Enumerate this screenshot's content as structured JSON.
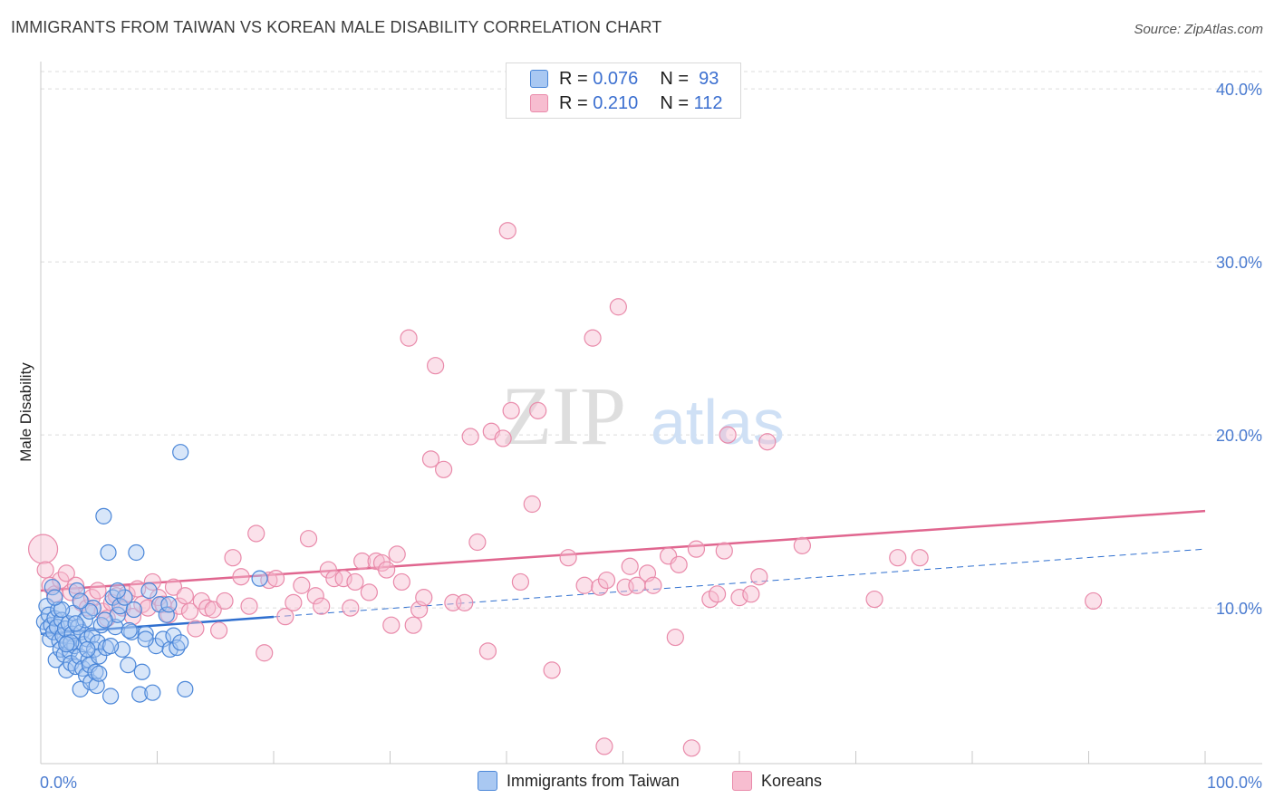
{
  "header": {
    "title": "IMMIGRANTS FROM TAIWAN VS KOREAN MALE DISABILITY CORRELATION CHART",
    "source": "Source: ZipAtlas.com"
  },
  "watermark": {
    "zip": "ZIP",
    "atlas": "atlas"
  },
  "legend": {
    "r_label": "R =",
    "n_label": "N =",
    "series": [
      {
        "name": "Immigrants from Taiwan",
        "r": "0.076",
        "n": "93"
      },
      {
        "name": "Koreans",
        "r": "0.210",
        "n": "112"
      }
    ]
  },
  "colors": {
    "taiwan_fill": "#a9c8f2",
    "taiwan_stroke": "#4a86d8",
    "taiwan_line": "#2f6fcf",
    "korean_fill": "#f7bdd0",
    "korean_stroke": "#e98aaa",
    "korean_line": "#e0668f",
    "tick_text": "#4a7bd0"
  },
  "chart_data": {
    "type": "scatter",
    "title": "IMMIGRANTS FROM TAIWAN VS KOREAN MALE DISABILITY CORRELATION CHART",
    "xlabel": "",
    "ylabel": "Male Disability",
    "xlim": [
      0,
      100
    ],
    "ylim": [
      1,
      41
    ],
    "x_tick_labels": [
      "0.0%",
      "100.0%"
    ],
    "y_ticks": [
      10,
      20,
      30,
      40
    ],
    "y_tick_labels": [
      "10.0%",
      "20.0%",
      "30.0%",
      "40.0%"
    ],
    "grid": "horizontal dashed",
    "legend_position": "bottom-center",
    "series": [
      {
        "name": "Immigrants from Taiwan",
        "r": 0.076,
        "n": 93,
        "trend": {
          "x0": 0,
          "y0": 8.5,
          "x1": 100,
          "y1": 13.4,
          "solid_until": 20
        },
        "points": [
          [
            0.3,
            9.2
          ],
          [
            0.5,
            10.1
          ],
          [
            0.6,
            8.8
          ],
          [
            0.7,
            9.6
          ],
          [
            0.8,
            8.2
          ],
          [
            0.9,
            9.0
          ],
          [
            1.0,
            11.2
          ],
          [
            1.1,
            8.6
          ],
          [
            1.2,
            9.4
          ],
          [
            1.3,
            7.0
          ],
          [
            1.4,
            8.9
          ],
          [
            1.5,
            9.9
          ],
          [
            1.6,
            8.1
          ],
          [
            1.7,
            7.6
          ],
          [
            1.8,
            9.3
          ],
          [
            1.9,
            8.4
          ],
          [
            2.0,
            7.3
          ],
          [
            2.1,
            8.8
          ],
          [
            2.2,
            6.4
          ],
          [
            2.3,
            8.0
          ],
          [
            2.4,
            9.1
          ],
          [
            2.5,
            7.5
          ],
          [
            2.6,
            6.8
          ],
          [
            2.7,
            8.5
          ],
          [
            2.8,
            9.7
          ],
          [
            2.9,
            7.8
          ],
          [
            3.0,
            6.6
          ],
          [
            3.1,
            11.0
          ],
          [
            3.2,
            8.9
          ],
          [
            3.3,
            7.2
          ],
          [
            3.4,
            5.3
          ],
          [
            3.5,
            8.6
          ],
          [
            3.6,
            6.5
          ],
          [
            3.7,
            7.9
          ],
          [
            3.8,
            9.3
          ],
          [
            3.9,
            6.1
          ],
          [
            4.0,
            8.2
          ],
          [
            4.1,
            7.0
          ],
          [
            4.2,
            6.7
          ],
          [
            4.3,
            5.7
          ],
          [
            4.4,
            8.4
          ],
          [
            4.5,
            10.0
          ],
          [
            4.6,
            7.6
          ],
          [
            4.7,
            6.3
          ],
          [
            4.8,
            5.5
          ],
          [
            4.9,
            8.0
          ],
          [
            5.0,
            7.2
          ],
          [
            5.2,
            9.0
          ],
          [
            5.4,
            15.3
          ],
          [
            5.6,
            7.7
          ],
          [
            5.8,
            13.2
          ],
          [
            6.0,
            4.9
          ],
          [
            6.2,
            10.6
          ],
          [
            6.4,
            8.9
          ],
          [
            6.6,
            9.6
          ],
          [
            6.8,
            10.1
          ],
          [
            7.0,
            7.6
          ],
          [
            7.2,
            10.6
          ],
          [
            7.5,
            6.7
          ],
          [
            7.8,
            8.6
          ],
          [
            8.0,
            9.9
          ],
          [
            8.2,
            13.2
          ],
          [
            8.5,
            5.0
          ],
          [
            8.7,
            6.3
          ],
          [
            9.0,
            8.5
          ],
          [
            9.3,
            11.0
          ],
          [
            9.6,
            5.1
          ],
          [
            9.9,
            7.8
          ],
          [
            10.2,
            10.2
          ],
          [
            10.5,
            8.2
          ],
          [
            10.8,
            9.6
          ],
          [
            11.1,
            7.6
          ],
          [
            11.4,
            8.4
          ],
          [
            11.7,
            7.7
          ],
          [
            12.0,
            8.0
          ],
          [
            11.0,
            10.2
          ],
          [
            9.0,
            8.2
          ],
          [
            7.6,
            8.7
          ],
          [
            6.6,
            11.0
          ],
          [
            5.5,
            9.3
          ],
          [
            4.2,
            9.8
          ],
          [
            3.4,
            10.4
          ],
          [
            2.6,
            8.0
          ],
          [
            1.8,
            9.9
          ],
          [
            1.2,
            10.6
          ],
          [
            2.2,
            7.9
          ],
          [
            3.0,
            9.1
          ],
          [
            4.0,
            7.6
          ],
          [
            5.0,
            6.2
          ],
          [
            6.0,
            7.8
          ],
          [
            18.8,
            11.7
          ],
          [
            12.0,
            19.0
          ],
          [
            12.4,
            5.3
          ]
        ]
      },
      {
        "name": "Koreans",
        "r": 0.21,
        "n": 112,
        "trend": {
          "x0": 0,
          "y0": 11.0,
          "x1": 100,
          "y1": 15.6
        },
        "points": [
          [
            0.2,
            13.4
          ],
          [
            0.4,
            12.2
          ],
          [
            0.8,
            11.3
          ],
          [
            1.2,
            10.8
          ],
          [
            1.7,
            11.6
          ],
          [
            2.2,
            12.0
          ],
          [
            2.6,
            10.9
          ],
          [
            3.0,
            11.3
          ],
          [
            3.5,
            10.3
          ],
          [
            4.0,
            10.0
          ],
          [
            4.4,
            10.6
          ],
          [
            4.9,
            11.0
          ],
          [
            5.3,
            9.8
          ],
          [
            5.7,
            9.4
          ],
          [
            6.1,
            10.3
          ],
          [
            6.5,
            10.7
          ],
          [
            7.0,
            10.0
          ],
          [
            7.4,
            10.8
          ],
          [
            7.9,
            9.5
          ],
          [
            8.3,
            11.1
          ],
          [
            8.7,
            10.2
          ],
          [
            9.2,
            10.0
          ],
          [
            9.6,
            11.5
          ],
          [
            10.1,
            10.6
          ],
          [
            10.5,
            10.2
          ],
          [
            11.0,
            9.6
          ],
          [
            11.4,
            11.2
          ],
          [
            11.9,
            10.1
          ],
          [
            12.4,
            10.7
          ],
          [
            12.8,
            9.8
          ],
          [
            13.3,
            8.8
          ],
          [
            13.8,
            10.4
          ],
          [
            14.3,
            10.0
          ],
          [
            14.8,
            9.9
          ],
          [
            15.3,
            8.7
          ],
          [
            15.8,
            10.4
          ],
          [
            16.5,
            12.9
          ],
          [
            17.2,
            11.8
          ],
          [
            17.9,
            10.1
          ],
          [
            18.5,
            14.3
          ],
          [
            19.2,
            7.4
          ],
          [
            19.6,
            11.6
          ],
          [
            20.2,
            11.7
          ],
          [
            21.0,
            9.5
          ],
          [
            21.7,
            10.3
          ],
          [
            22.4,
            11.3
          ],
          [
            23.0,
            14.0
          ],
          [
            23.6,
            10.7
          ],
          [
            24.1,
            10.1
          ],
          [
            24.7,
            12.2
          ],
          [
            25.2,
            11.7
          ],
          [
            26.0,
            11.7
          ],
          [
            26.6,
            10.0
          ],
          [
            27.0,
            11.5
          ],
          [
            27.6,
            12.7
          ],
          [
            28.2,
            10.9
          ],
          [
            28.8,
            12.7
          ],
          [
            29.3,
            12.6
          ],
          [
            29.7,
            12.2
          ],
          [
            30.1,
            9.0
          ],
          [
            30.6,
            13.1
          ],
          [
            31.0,
            11.5
          ],
          [
            31.6,
            25.6
          ],
          [
            32.0,
            9.0
          ],
          [
            32.5,
            9.9
          ],
          [
            32.9,
            10.6
          ],
          [
            33.5,
            18.6
          ],
          [
            33.9,
            24.0
          ],
          [
            34.6,
            18.0
          ],
          [
            35.4,
            10.3
          ],
          [
            36.4,
            10.3
          ],
          [
            36.9,
            19.9
          ],
          [
            37.5,
            13.8
          ],
          [
            38.4,
            7.5
          ],
          [
            38.7,
            20.2
          ],
          [
            39.7,
            19.8
          ],
          [
            40.4,
            21.4
          ],
          [
            40.1,
            31.8
          ],
          [
            41.2,
            11.5
          ],
          [
            42.2,
            16.0
          ],
          [
            42.7,
            21.4
          ],
          [
            43.9,
            6.4
          ],
          [
            45.3,
            12.9
          ],
          [
            46.7,
            11.3
          ],
          [
            47.4,
            25.6
          ],
          [
            48.0,
            11.2
          ],
          [
            48.6,
            11.6
          ],
          [
            48.4,
            2.0
          ],
          [
            49.6,
            27.4
          ],
          [
            50.2,
            11.2
          ],
          [
            50.6,
            12.4
          ],
          [
            51.2,
            11.3
          ],
          [
            52.1,
            12.0
          ],
          [
            52.6,
            11.3
          ],
          [
            53.9,
            13.0
          ],
          [
            54.5,
            8.3
          ],
          [
            54.8,
            12.5
          ],
          [
            55.9,
            1.9
          ],
          [
            56.3,
            13.4
          ],
          [
            57.5,
            10.5
          ],
          [
            58.1,
            10.8
          ],
          [
            58.7,
            13.3
          ],
          [
            59.0,
            20.0
          ],
          [
            60.0,
            10.6
          ],
          [
            61.0,
            10.8
          ],
          [
            61.7,
            11.8
          ],
          [
            62.4,
            19.6
          ],
          [
            65.4,
            13.6
          ],
          [
            71.6,
            10.5
          ],
          [
            73.6,
            12.9
          ],
          [
            75.5,
            12.9
          ],
          [
            90.4,
            10.4
          ]
        ]
      }
    ]
  }
}
